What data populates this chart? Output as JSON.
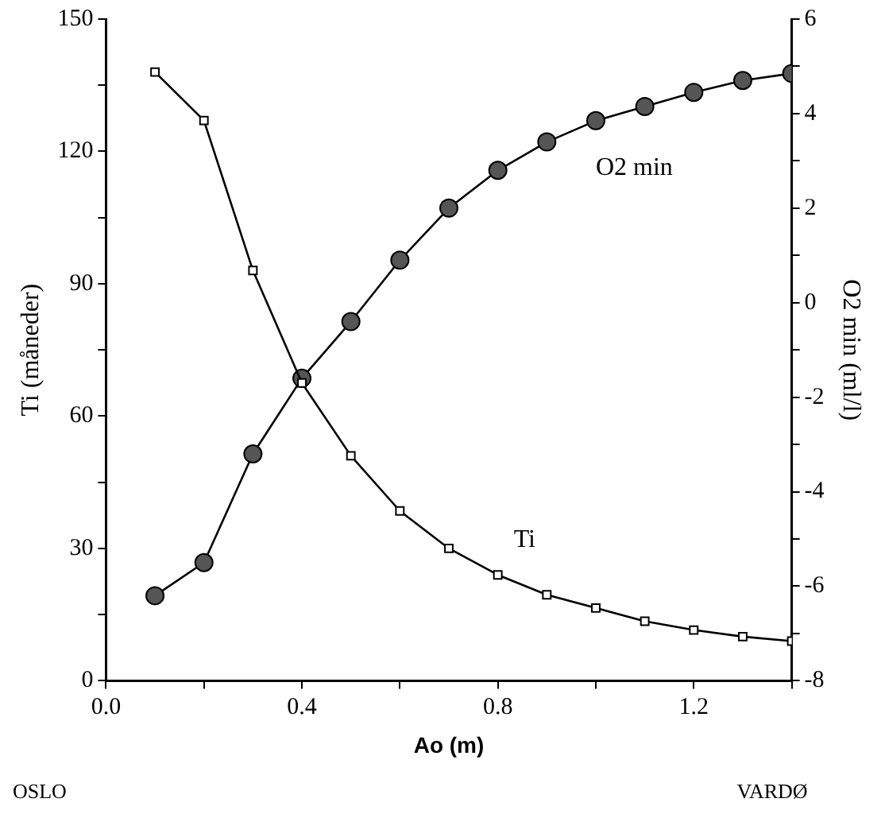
{
  "chart_data": {
    "type": "line",
    "xlabel": "Ao (m)",
    "ylabel": "Ti (måneder)",
    "y2label": "O2 min (ml/l)",
    "x": [
      0.1,
      0.2,
      0.3,
      0.4,
      0.5,
      0.6,
      0.7,
      0.8,
      0.9,
      1.0,
      1.1,
      1.2,
      1.3,
      1.4
    ],
    "series": [
      {
        "name": "Ti",
        "color": "#000000",
        "marker": "square",
        "values": [
          138,
          127,
          93,
          67.5,
          51,
          38.5,
          30,
          24,
          19.5,
          16.5,
          13.5,
          11.5,
          10,
          9
        ]
      },
      {
        "name": "O2 min",
        "color": "#555555",
        "marker": "circle",
        "axis": "y2",
        "values": [
          -6.2,
          -5.5,
          -3.2,
          -1.6,
          -0.4,
          0.9,
          2.0,
          2.8,
          3.4,
          3.85,
          4.15,
          4.45,
          4.7,
          4.85
        ]
      }
    ],
    "xlim": [
      0,
      1.4
    ],
    "xticks": [
      {
        "value": 0,
        "label": "0.0"
      },
      {
        "value": 0.2,
        "label": null
      },
      {
        "value": 0.4,
        "label": "0.4"
      },
      {
        "value": 0.6,
        "label": null
      },
      {
        "value": 0.8,
        "label": "0.8"
      },
      {
        "value": 1.0,
        "label": null
      },
      {
        "value": 1.2,
        "label": "1.2"
      },
      {
        "value": 1.4,
        "label": null
      }
    ],
    "ylim": [
      0,
      150
    ],
    "yticks": [
      0,
      {
        "value": 15,
        "label": null
      },
      30,
      {
        "value": 45,
        "label": null
      },
      60,
      {
        "value": 75,
        "label": null
      },
      90,
      {
        "value": 105,
        "label": null
      },
      120,
      {
        "value": 135,
        "label": null
      },
      150
    ],
    "y2lim": [
      -8,
      6
    ],
    "y2ticks": [
      -8,
      {
        "value": -7,
        "label": null
      },
      -6,
      {
        "value": -5,
        "label": null
      },
      -4,
      {
        "value": -3,
        "label": null
      },
      -2,
      {
        "value": -1,
        "label": null
      },
      0,
      {
        "value": 1,
        "label": null
      },
      2,
      {
        "value": 3,
        "label": null
      },
      4,
      {
        "value": 5,
        "label": null
      },
      6
    ],
    "annotations": [
      "OSLO",
      "VARDØ"
    ],
    "legend": false,
    "grid": false,
    "line_style": "solid"
  }
}
